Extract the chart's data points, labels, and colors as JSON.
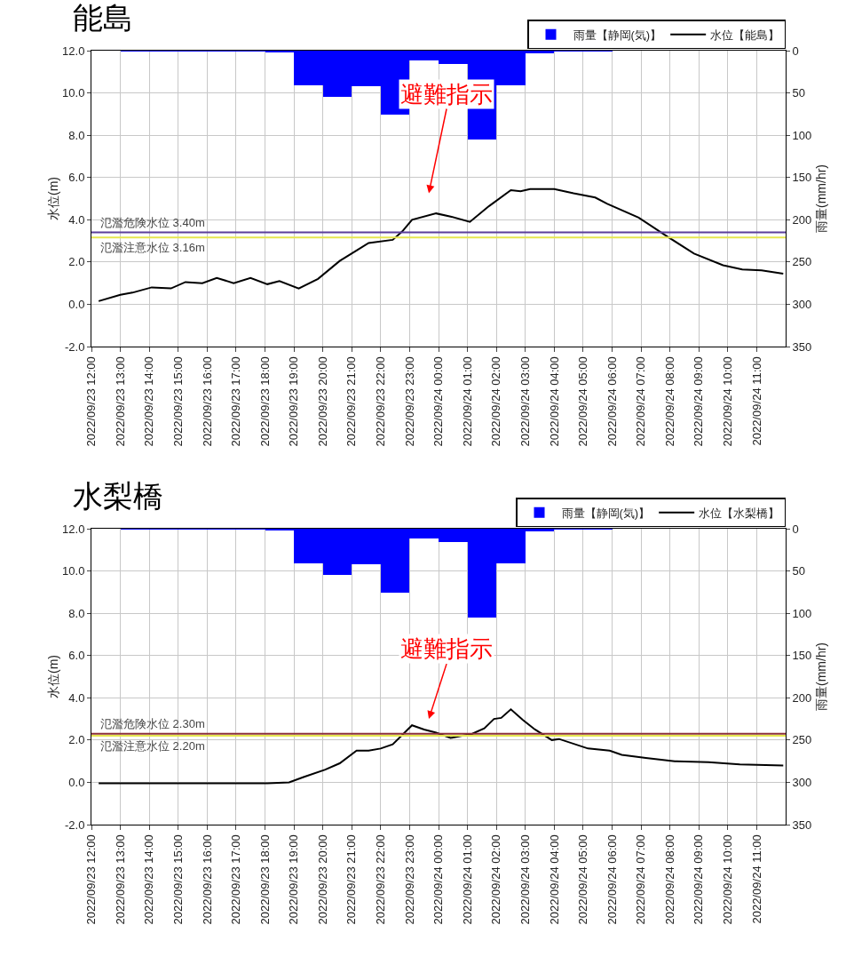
{
  "chart_data": [
    {
      "type": "bar",
      "title": "能島",
      "ylabel": "水位(m)",
      "y2label": "雨量(mm/hr)",
      "grid": true,
      "legend": "top right",
      "xlim": [
        "2022-09-23T12:00",
        "2022-09-24T12:00"
      ],
      "xticks": [
        {
          "value": "2022-09-23T12:00",
          "label": "2022/09/23 12:00"
        },
        {
          "value": "2022-09-23T13:00",
          "label": "2022/09/23 13:00"
        },
        {
          "value": "2022-09-23T14:00",
          "label": "2022/09/23 14:00"
        },
        {
          "value": "2022-09-23T15:00",
          "label": "2022/09/23 15:00"
        },
        {
          "value": "2022-09-23T16:00",
          "label": "2022/09/23 16:00"
        },
        {
          "value": "2022-09-23T17:00",
          "label": "2022/09/23 17:00"
        },
        {
          "value": "2022-09-23T18:00",
          "label": "2022/09/23 18:00"
        },
        {
          "value": "2022-09-23T19:00",
          "label": "2022/09/23 19:00"
        },
        {
          "value": "2022-09-23T20:00",
          "label": "2022/09/23 20:00"
        },
        {
          "value": "2022-09-23T21:00",
          "label": "2022/09/23 21:00"
        },
        {
          "value": "2022-09-23T22:00",
          "label": "2022/09/23 22:00"
        },
        {
          "value": "2022-09-23T23:00",
          "label": "2022/09/23 23:00"
        },
        {
          "value": "2022-09-24T00:00",
          "label": "2022/09/24 00:00"
        },
        {
          "value": "2022-09-24T01:00",
          "label": "2022/09/24 01:00"
        },
        {
          "value": "2022-09-24T02:00",
          "label": "2022/09/24 02:00"
        },
        {
          "value": "2022-09-24T03:00",
          "label": "2022/09/24 03:00"
        },
        {
          "value": "2022-09-24T04:00",
          "label": "2022/09/24 04:00"
        },
        {
          "value": "2022-09-24T05:00",
          "label": "2022/09/24 05:00"
        },
        {
          "value": "2022-09-24T06:00",
          "label": "2022/09/24 06:00"
        },
        {
          "value": "2022-09-24T07:00",
          "label": "2022/09/24 07:00"
        },
        {
          "value": "2022-09-24T08:00",
          "label": "2022/09/24 08:00"
        },
        {
          "value": "2022-09-24T09:00",
          "label": "2022/09/24 09:00"
        },
        {
          "value": "2022-09-24T10:00",
          "label": "2022/09/24 10:00"
        },
        {
          "value": "2022-09-24T11:00",
          "label": "2022/09/24 11:00"
        }
      ],
      "ylim": [
        -2,
        12
      ],
      "yticks": [
        {
          "value": -2,
          "label": "-2.0"
        },
        {
          "value": 0,
          "label": "0.0"
        },
        {
          "value": 2,
          "label": "2.0"
        },
        {
          "value": 4,
          "label": "4.0"
        },
        {
          "value": 6,
          "label": "6.0"
        },
        {
          "value": 8,
          "label": "8.0"
        },
        {
          "value": 10,
          "label": "10.0"
        },
        {
          "value": 12,
          "label": "12.0"
        }
      ],
      "y2lim": [
        350,
        0
      ],
      "y2ticks": [
        0,
        50,
        100,
        150,
        200,
        250,
        300,
        350
      ],
      "series": [
        {
          "name": "雨量【静岡(気)】",
          "axis": "y2",
          "color": "#0000ff",
          "x": [
            "2022-09-23T12:30",
            "2022-09-23T13:30",
            "2022-09-23T14:30",
            "2022-09-23T15:30",
            "2022-09-23T16:30",
            "2022-09-23T17:30",
            "2022-09-23T18:30",
            "2022-09-23T19:30",
            "2022-09-23T20:30",
            "2022-09-23T21:30",
            "2022-09-23T22:30",
            "2022-09-23T23:30",
            "2022-09-24T00:30",
            "2022-09-24T01:30",
            "2022-09-24T02:30",
            "2022-09-24T03:30",
            "2022-09-24T04:30",
            "2022-09-24T05:30",
            "2022-09-24T06:30",
            "2022-09-24T07:30",
            "2022-09-24T08:30",
            "2022-09-24T09:30",
            "2022-09-24T10:30",
            "2022-09-24T11:30"
          ],
          "values": [
            0,
            1,
            1,
            1,
            1,
            1,
            2,
            41,
            55,
            42,
            76,
            12,
            16,
            105,
            41,
            3,
            1,
            1,
            0,
            0,
            0,
            0,
            0,
            0
          ]
        },
        {
          "name": "水位【能島】",
          "type": "line",
          "color": "#000000",
          "x": [
            "2022-09-23T12:15",
            "2022-09-23T13:00",
            "2022-09-23T13:25",
            "2022-09-23T14:05",
            "2022-09-23T14:45",
            "2022-09-23T15:15",
            "2022-09-23T15:50",
            "2022-09-23T16:20",
            "2022-09-23T16:55",
            "2022-09-23T17:30",
            "2022-09-23T18:05",
            "2022-09-23T18:30",
            "2022-09-23T19:10",
            "2022-09-23T19:50",
            "2022-09-23T20:35",
            "2022-09-23T21:10",
            "2022-09-23T21:35",
            "2022-09-23T22:25",
            "2022-09-23T22:45",
            "2022-09-23T23:05",
            "2022-09-23T23:55",
            "2022-09-24T00:25",
            "2022-09-24T01:05",
            "2022-09-24T01:45",
            "2022-09-24T02:30",
            "2022-09-24T02:50",
            "2022-09-24T03:10",
            "2022-09-24T04:00",
            "2022-09-24T04:40",
            "2022-09-24T05:25",
            "2022-09-24T05:50",
            "2022-09-24T06:55",
            "2022-09-24T07:55",
            "2022-09-24T08:50",
            "2022-09-24T09:50",
            "2022-09-24T10:30",
            "2022-09-24T11:10",
            "2022-09-24T11:55"
          ],
          "values": [
            0.15,
            0.45,
            0.55,
            0.8,
            0.75,
            1.05,
            1.0,
            1.25,
            1.0,
            1.25,
            0.95,
            1.1,
            0.75,
            1.2,
            2.05,
            2.55,
            2.9,
            3.05,
            3.45,
            4.0,
            4.3,
            4.15,
            3.9,
            4.65,
            5.4,
            5.35,
            5.45,
            5.45,
            5.25,
            5.05,
            4.75,
            4.1,
            3.2,
            2.4,
            1.85,
            1.65,
            1.6,
            1.45
          ]
        }
      ],
      "ref_lines": [
        {
          "axis": "y",
          "value": 3.4,
          "label": "氾濫危険水位 3.40m",
          "color": "#5b3f9b"
        },
        {
          "axis": "y",
          "value": 3.16,
          "label": "氾濫注意水位 3.16m",
          "color": "#e6e650"
        }
      ],
      "annotations": [
        "避難指示"
      ]
    },
    {
      "type": "bar",
      "title": "水梨橋",
      "ylabel": "水位(m)",
      "y2label": "雨量(mm/hr)",
      "grid": true,
      "legend": "top right",
      "xlim": [
        "2022-09-23T12:00",
        "2022-09-24T12:00"
      ],
      "xticks": [
        {
          "value": "2022-09-23T12:00",
          "label": "2022/09/23 12:00"
        },
        {
          "value": "2022-09-23T13:00",
          "label": "2022/09/23 13:00"
        },
        {
          "value": "2022-09-23T14:00",
          "label": "2022/09/23 14:00"
        },
        {
          "value": "2022-09-23T15:00",
          "label": "2022/09/23 15:00"
        },
        {
          "value": "2022-09-23T16:00",
          "label": "2022/09/23 16:00"
        },
        {
          "value": "2022-09-23T17:00",
          "label": "2022/09/23 17:00"
        },
        {
          "value": "2022-09-23T18:00",
          "label": "2022/09/23 18:00"
        },
        {
          "value": "2022-09-23T19:00",
          "label": "2022/09/23 19:00"
        },
        {
          "value": "2022-09-23T20:00",
          "label": "2022/09/23 20:00"
        },
        {
          "value": "2022-09-23T21:00",
          "label": "2022/09/23 21:00"
        },
        {
          "value": "2022-09-23T22:00",
          "label": "2022/09/23 22:00"
        },
        {
          "value": "2022-09-23T23:00",
          "label": "2022/09/23 23:00"
        },
        {
          "value": "2022-09-24T00:00",
          "label": "2022/09/24 00:00"
        },
        {
          "value": "2022-09-24T01:00",
          "label": "2022/09/24 01:00"
        },
        {
          "value": "2022-09-24T02:00",
          "label": "2022/09/24 02:00"
        },
        {
          "value": "2022-09-24T03:00",
          "label": "2022/09/24 03:00"
        },
        {
          "value": "2022-09-24T04:00",
          "label": "2022/09/24 04:00"
        },
        {
          "value": "2022-09-24T05:00",
          "label": "2022/09/24 05:00"
        },
        {
          "value": "2022-09-24T06:00",
          "label": "2022/09/24 06:00"
        },
        {
          "value": "2022-09-24T07:00",
          "label": "2022/09/24 07:00"
        },
        {
          "value": "2022-09-24T08:00",
          "label": "2022/09/24 08:00"
        },
        {
          "value": "2022-09-24T09:00",
          "label": "2022/09/24 09:00"
        },
        {
          "value": "2022-09-24T10:00",
          "label": "2022/09/24 10:00"
        },
        {
          "value": "2022-09-24T11:00",
          "label": "2022/09/24 11:00"
        }
      ],
      "ylim": [
        -2,
        12
      ],
      "yticks": [
        {
          "value": -2,
          "label": "-2.0"
        },
        {
          "value": 0,
          "label": "0.0"
        },
        {
          "value": 2,
          "label": "2.0"
        },
        {
          "value": 4,
          "label": "4.0"
        },
        {
          "value": 6,
          "label": "6.0"
        },
        {
          "value": 8,
          "label": "8.0"
        },
        {
          "value": 10,
          "label": "10.0"
        },
        {
          "value": 12,
          "label": "12.0"
        }
      ],
      "y2lim": [
        350,
        0
      ],
      "y2ticks": [
        0,
        50,
        100,
        150,
        200,
        250,
        300,
        350
      ],
      "series": [
        {
          "name": "雨量【静岡(気)】",
          "axis": "y2",
          "color": "#0000ff",
          "x": [
            "2022-09-23T12:30",
            "2022-09-23T13:30",
            "2022-09-23T14:30",
            "2022-09-23T15:30",
            "2022-09-23T16:30",
            "2022-09-23T17:30",
            "2022-09-23T18:30",
            "2022-09-23T19:30",
            "2022-09-23T20:30",
            "2022-09-23T21:30",
            "2022-09-23T22:30",
            "2022-09-23T23:30",
            "2022-09-24T00:30",
            "2022-09-24T01:30",
            "2022-09-24T02:30",
            "2022-09-24T03:30",
            "2022-09-24T04:30",
            "2022-09-24T05:30",
            "2022-09-24T06:30",
            "2022-09-24T07:30",
            "2022-09-24T08:30",
            "2022-09-24T09:30",
            "2022-09-24T10:30",
            "2022-09-24T11:30"
          ],
          "values": [
            0,
            1,
            1,
            1,
            1,
            1,
            2,
            41,
            55,
            42,
            76,
            12,
            16,
            105,
            41,
            3,
            1,
            1,
            0,
            0,
            0,
            0,
            0,
            0
          ]
        },
        {
          "name": "水位【水梨橋】",
          "type": "line",
          "color": "#000000",
          "x": [
            "2022-09-23T12:15",
            "2022-09-23T18:05",
            "2022-09-23T18:50",
            "2022-09-23T19:20",
            "2022-09-23T20:05",
            "2022-09-23T20:35",
            "2022-09-23T21:10",
            "2022-09-23T21:35",
            "2022-09-23T22:00",
            "2022-09-23T22:25",
            "2022-09-23T23:05",
            "2022-09-23T23:30",
            "2022-09-23T23:55",
            "2022-09-24T00:25",
            "2022-09-24T01:10",
            "2022-09-24T01:35",
            "2022-09-24T01:55",
            "2022-09-24T02:10",
            "2022-09-24T02:30",
            "2022-09-24T02:55",
            "2022-09-24T03:20",
            "2022-09-24T03:55",
            "2022-09-24T04:10",
            "2022-09-24T05:10",
            "2022-09-24T05:55",
            "2022-09-24T06:20",
            "2022-09-24T07:10",
            "2022-09-24T08:10",
            "2022-09-24T09:20",
            "2022-09-24T10:25",
            "2022-09-24T11:55"
          ],
          "values": [
            -0.05,
            -0.05,
            0.0,
            0.25,
            0.6,
            0.9,
            1.5,
            1.5,
            1.6,
            1.8,
            2.7,
            2.5,
            2.35,
            2.1,
            2.3,
            2.55,
            3.0,
            3.05,
            3.45,
            2.95,
            2.5,
            2.0,
            2.05,
            1.6,
            1.5,
            1.3,
            1.15,
            1.0,
            0.95,
            0.85,
            0.8
          ]
        }
      ],
      "ref_lines": [
        {
          "axis": "y",
          "value": 2.3,
          "label": "氾濫危険水位 2.30m",
          "color": "#8b2f3a"
        },
        {
          "axis": "y",
          "value": 2.2,
          "label": "氾濫注意水位 2.20m",
          "color": "#e6e650"
        }
      ],
      "annotations": [
        "避難指示"
      ]
    }
  ]
}
